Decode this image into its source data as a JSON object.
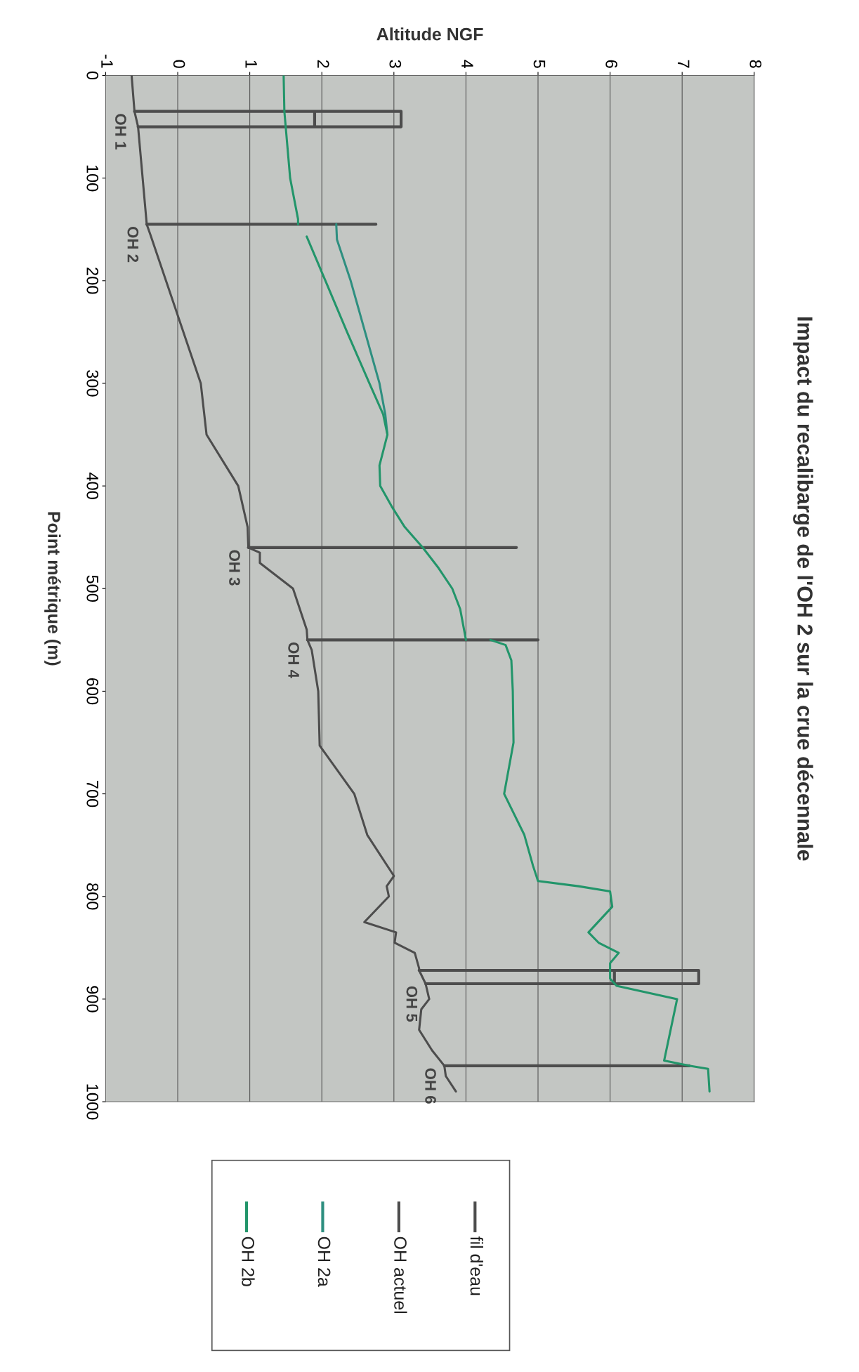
{
  "chart_data": {
    "type": "line",
    "title": "Impact du recalibarge de l'OH 2 sur la crue décennale",
    "xlabel": "Altitude NGF",
    "ylabel": "Point métrique (m)",
    "xlim": [
      -1,
      8
    ],
    "xticks": [
      -1,
      0,
      1,
      2,
      3,
      4,
      5,
      6,
      7,
      8
    ],
    "ylim": [
      1000,
      0
    ],
    "yticks": [
      0,
      100,
      200,
      300,
      400,
      500,
      600,
      700,
      800,
      900,
      1000
    ],
    "grid": "x",
    "legend": "bottom",
    "marker": "none",
    "line_style": "solid",
    "series": [
      {
        "name": "fil d'eau",
        "color": "#4d4d4d",
        "values": [
          0,
          35,
          50,
          145,
          155,
          300,
          350,
          400,
          440,
          460,
          465,
          475,
          500,
          540,
          550,
          560,
          600,
          653,
          700,
          740,
          780,
          790,
          800,
          825,
          835,
          845,
          855,
          870,
          872,
          885,
          900,
          910,
          930,
          950,
          965,
          975,
          990
        ],
        "x": [
          -0.64,
          -0.6,
          -0.55,
          -0.43,
          -0.38,
          0.32,
          0.4,
          0.84,
          0.97,
          0.98,
          1.14,
          1.14,
          1.6,
          1.79,
          1.8,
          1.86,
          1.95,
          1.97,
          2.45,
          2.63,
          3.0,
          2.9,
          2.93,
          2.59,
          3.03,
          3.01,
          3.29,
          3.35,
          3.35,
          3.44,
          3.49,
          3.38,
          3.35,
          3.53,
          3.7,
          3.72,
          3.86
        ]
      },
      {
        "name": "OH actuel",
        "color": "#4d4d4d",
        "values": [
          35,
          35,
          50,
          50,
          null,
          35,
          50,
          null,
          145,
          145,
          null,
          460,
          460,
          null,
          550,
          550,
          null,
          872,
          872,
          885,
          885,
          null,
          872,
          885,
          null,
          965,
          965
        ],
        "x": [
          -0.6,
          3.1,
          3.1,
          -0.55,
          null,
          1.9,
          1.9,
          null,
          -0.43,
          2.75,
          null,
          0.98,
          4.7,
          null,
          1.8,
          5.0,
          null,
          3.35,
          7.23,
          7.23,
          3.44,
          null,
          6.06,
          6.06,
          null,
          3.7,
          7.1
        ]
      },
      {
        "name": "OH 2a",
        "color": "#2e8f80",
        "values": [
          145,
          160,
          200,
          250,
          300,
          330,
          350
        ],
        "x": [
          2.2,
          2.21,
          2.4,
          2.6,
          2.8,
          2.88,
          2.91
        ]
      },
      {
        "name": "OH 2b",
        "color": "#22956a",
        "values": [
          0,
          35,
          100,
          140,
          145,
          null,
          157,
          200,
          250,
          300,
          330,
          350,
          380,
          400,
          420,
          440,
          460,
          480,
          500,
          520,
          550,
          null,
          550,
          555,
          570,
          600,
          650,
          700,
          740,
          770,
          785,
          790,
          795,
          810,
          835,
          845,
          855,
          865,
          880,
          887,
          900,
          960,
          965,
          968,
          990
        ],
        "x": [
          1.47,
          1.48,
          1.56,
          1.67,
          1.67,
          null,
          1.79,
          2.05,
          2.35,
          2.66,
          2.85,
          2.91,
          2.8,
          2.81,
          2.97,
          3.15,
          3.4,
          3.62,
          3.81,
          3.92,
          4.0,
          null,
          4.34,
          4.55,
          4.63,
          4.65,
          4.66,
          4.53,
          4.81,
          4.93,
          5.0,
          5.56,
          6.0,
          6.03,
          5.7,
          5.84,
          6.12,
          6.0,
          6.0,
          6.09,
          6.93,
          6.75,
          7.11,
          7.36,
          7.38
        ]
      }
    ],
    "annotations": [
      {
        "text": "OH 1",
        "y": 35,
        "x": -0.6
      },
      {
        "text": "OH 2",
        "y": 145,
        "x": -0.43
      },
      {
        "text": "OH 3",
        "y": 460,
        "x": 0.98
      },
      {
        "text": "OH 4",
        "y": 550,
        "x": 1.8
      },
      {
        "text": "OH 5",
        "y": 885,
        "x": 3.44
      },
      {
        "text": "OH 6",
        "y": 965,
        "x": 3.7
      }
    ]
  }
}
